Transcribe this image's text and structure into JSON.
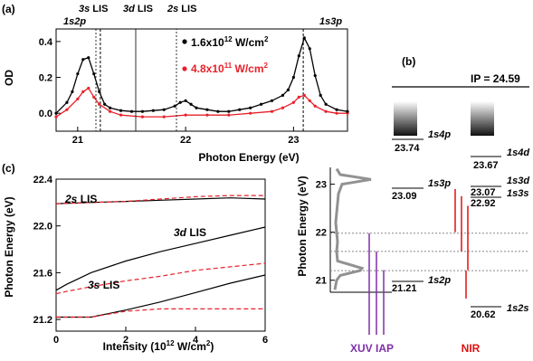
{
  "colors": {
    "black": "#000000",
    "red": "#e8202a",
    "purple": "#7d2fa8",
    "nir": "#e01010",
    "grey": "#888888"
  },
  "chart_data": [
    {
      "panel_label": "(a)",
      "type": "line",
      "xlabel": "Photon Energy (eV)",
      "ylabel": "OD",
      "xlim": [
        20.8,
        23.5
      ],
      "ylim": [
        -0.1,
        0.47
      ],
      "xticks": [
        "21",
        "22",
        "23"
      ],
      "yticks": [
        "0.0",
        "0.2",
        "0.4"
      ],
      "legend_position": "top-right",
      "legend": [
        {
          "label_main": "1.6x10",
          "label_sup": "12",
          "label_tail": " W/cm",
          "label_sup2": "2",
          "color": "black"
        },
        {
          "label_main": "4.8x10",
          "label_sup": "11",
          "label_tail": " W/cm",
          "label_sup2": "2",
          "color": "red"
        }
      ],
      "annotations": {
        "peaks": [
          {
            "label": "1s2p",
            "x": 21.21
          },
          {
            "label": "1s3p",
            "x": 23.09
          }
        ],
        "lis": [
          {
            "prefix": "3s",
            "suffix": " LIS",
            "x": 21.21
          },
          {
            "prefix": "3d",
            "suffix": " LIS",
            "x": 21.6
          },
          {
            "prefix": "2s",
            "suffix": " LIS",
            "x": 21.98
          }
        ]
      },
      "series": [
        {
          "name": "1.6x10^12 W/cm^2",
          "color": "black",
          "x": [
            20.8,
            20.9,
            20.95,
            21.0,
            21.05,
            21.1,
            21.15,
            21.2,
            21.25,
            21.3,
            21.4,
            21.5,
            21.6,
            21.7,
            21.8,
            21.9,
            21.95,
            22.0,
            22.05,
            22.1,
            22.2,
            22.3,
            22.4,
            22.5,
            22.6,
            22.7,
            22.8,
            22.9,
            22.95,
            23.0,
            23.05,
            23.1,
            23.15,
            23.2,
            23.25,
            23.3,
            23.4,
            23.5
          ],
          "y": [
            0.0,
            0.06,
            0.12,
            0.22,
            0.3,
            0.31,
            0.22,
            0.12,
            0.05,
            0.03,
            0.015,
            0.01,
            0.01,
            0.015,
            0.02,
            0.04,
            0.06,
            0.07,
            0.05,
            0.03,
            0.02,
            0.01,
            0.01,
            0.02,
            0.03,
            0.05,
            0.07,
            0.1,
            0.13,
            0.2,
            0.32,
            0.42,
            0.36,
            0.21,
            0.1,
            0.05,
            0.02,
            0.01
          ]
        },
        {
          "name": "4.8x10^11 W/cm^2",
          "color": "red",
          "x": [
            20.8,
            20.9,
            21.0,
            21.05,
            21.1,
            21.15,
            21.2,
            21.3,
            21.4,
            21.6,
            21.8,
            22.0,
            22.2,
            22.4,
            22.6,
            22.8,
            22.9,
            23.0,
            23.05,
            23.1,
            23.15,
            23.2,
            23.3,
            23.4,
            23.5
          ],
          "y": [
            -0.02,
            0.02,
            0.08,
            0.12,
            0.14,
            0.09,
            0.05,
            0.01,
            -0.01,
            -0.02,
            -0.02,
            -0.01,
            -0.01,
            -0.01,
            0.0,
            0.01,
            0.03,
            0.06,
            0.09,
            0.1,
            0.07,
            0.04,
            0.01,
            0.0,
            0.0
          ]
        }
      ]
    },
    {
      "panel_label": "(b)",
      "type": "diagram",
      "ip_label": "IP = 24.59",
      "ylabel": "Photon Energy (eV)",
      "ylim": [
        20.75,
        23.35
      ],
      "yticks": [
        "21",
        "22",
        "23"
      ],
      "levels_left": [
        {
          "state": "1s4p",
          "value": "23.74"
        },
        {
          "state": "1s3p",
          "value": "23.09"
        },
        {
          "state": "1s2p",
          "value": "21.21"
        }
      ],
      "levels_right": [
        {
          "state": "1s4d",
          "value": "23.67"
        },
        {
          "state": "1s3d",
          "value": "23.07"
        },
        {
          "state": "1s3s",
          "value": "22.92"
        },
        {
          "state": "1s2s",
          "value": "20.62"
        }
      ],
      "labels": {
        "xuv": "XUV IAP",
        "nir": "NIR"
      }
    },
    {
      "panel_label": "(c)",
      "type": "line",
      "xlabel_main": "Intensity (10",
      "xlabel_sup": "12",
      "xlabel_tail": " W/cm",
      "xlabel_sup2": "2",
      "xlabel_end": ")",
      "ylabel": "Photon Energy (eV)",
      "xlim": [
        0,
        6
      ],
      "ylim": [
        21.1,
        22.4
      ],
      "xticks": [
        "0",
        "2",
        "4",
        "6"
      ],
      "yticks": [
        "21.2",
        "21.6",
        "22.0",
        "22.4"
      ],
      "curve_labels": [
        {
          "prefix": "2s",
          "suffix": " LIS"
        },
        {
          "prefix": "3d",
          "suffix": " LIS"
        },
        {
          "prefix": "3s",
          "suffix": " LIS"
        }
      ],
      "series": [
        {
          "line": "solid",
          "color": "black",
          "x": [
            0,
            1,
            2,
            3,
            4,
            5,
            6
          ],
          "y": [
            22.19,
            22.2,
            22.21,
            22.22,
            22.23,
            22.24,
            22.23
          ]
        },
        {
          "line": "dashed",
          "color": "red",
          "x": [
            0,
            1,
            2,
            3,
            4,
            5,
            6
          ],
          "y": [
            22.19,
            22.2,
            22.21,
            22.23,
            22.25,
            22.26,
            22.26
          ]
        },
        {
          "line": "solid",
          "color": "black",
          "x": [
            0,
            0.3,
            1,
            2,
            3,
            4,
            5,
            6
          ],
          "y": [
            21.45,
            21.5,
            21.6,
            21.7,
            21.78,
            21.85,
            21.92,
            21.99
          ]
        },
        {
          "line": "dashed",
          "color": "red",
          "x": [
            0,
            0.3,
            1,
            2,
            3,
            4,
            5,
            6
          ],
          "y": [
            21.42,
            21.44,
            21.48,
            21.53,
            21.57,
            21.62,
            21.65,
            21.68
          ]
        },
        {
          "line": "solid",
          "color": "black",
          "x": [
            0,
            1,
            2,
            3,
            4,
            5,
            6
          ],
          "y": [
            21.22,
            21.22,
            21.28,
            21.35,
            21.43,
            21.51,
            21.58
          ]
        },
        {
          "line": "dashed",
          "color": "red",
          "x": [
            0,
            1,
            2,
            3,
            4,
            5,
            6
          ],
          "y": [
            21.22,
            21.22,
            21.27,
            21.29,
            21.29,
            21.29,
            21.29
          ]
        }
      ]
    }
  ]
}
